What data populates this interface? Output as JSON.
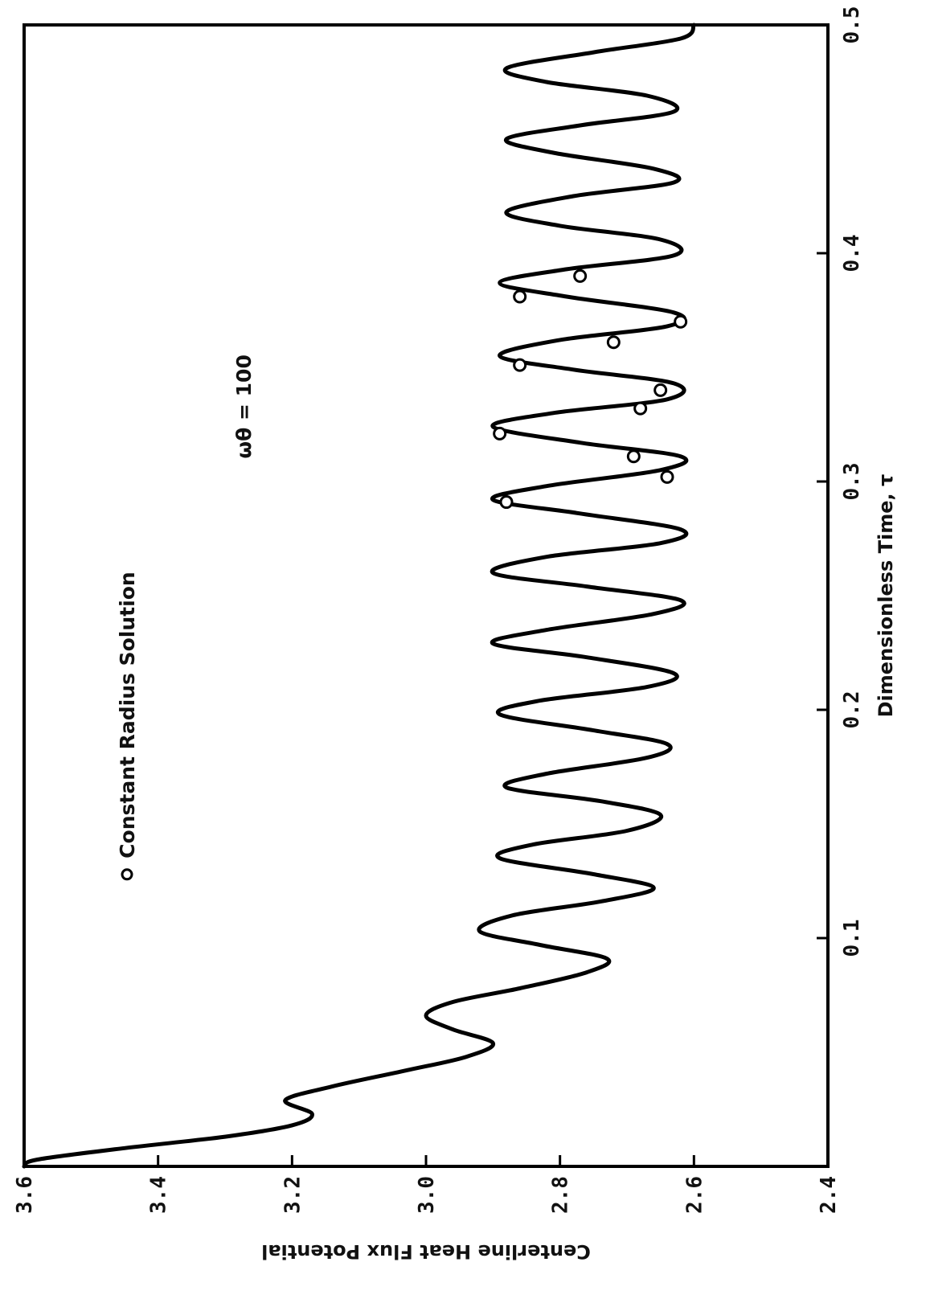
{
  "chart_data": {
    "type": "line",
    "xlabel": "Dimensionless Time, τ",
    "ylabel": "Centerline Heat Flux Potential",
    "annotation": "ωθ = 100",
    "xlim": [
      0,
      0.5
    ],
    "ylim": [
      2.4,
      3.6
    ],
    "x_ticks": [
      "0.1",
      "0.2",
      "0.3",
      "0.4",
      "0.5"
    ],
    "y_ticks": [
      "3.6",
      "3.4",
      "3.2",
      "3.0",
      "2.8",
      "2.6",
      "2.4"
    ],
    "series": [
      {
        "style": "line",
        "x": [
          0.0,
          0.003,
          0.008,
          0.013,
          0.018,
          0.023,
          0.029,
          0.035,
          0.042,
          0.048,
          0.054,
          0.06,
          0.066,
          0.072,
          0.078,
          0.085,
          0.091,
          0.097,
          0.103,
          0.11,
          0.116,
          0.122,
          0.128,
          0.135,
          0.141,
          0.147,
          0.154,
          0.16,
          0.166,
          0.172,
          0.179,
          0.185,
          0.191,
          0.198,
          0.204,
          0.21,
          0.216,
          0.223,
          0.229,
          0.235,
          0.242,
          0.248,
          0.254,
          0.26,
          0.267,
          0.273,
          0.279,
          0.286,
          0.292,
          0.298,
          0.305,
          0.311,
          0.317,
          0.324,
          0.33,
          0.336,
          0.343,
          0.349,
          0.355,
          0.362,
          0.368,
          0.374,
          0.381,
          0.387,
          0.393,
          0.399,
          0.406,
          0.412,
          0.418,
          0.425,
          0.431,
          0.437,
          0.444,
          0.45,
          0.456,
          0.462,
          0.469,
          0.475,
          0.481,
          0.488,
          0.494,
          0.5
        ],
        "y": [
          3.6,
          3.58,
          3.45,
          3.3,
          3.2,
          3.17,
          3.21,
          3.14,
          3.03,
          2.94,
          2.9,
          2.96,
          3.0,
          2.96,
          2.86,
          2.76,
          2.73,
          2.83,
          2.92,
          2.87,
          2.74,
          2.66,
          2.75,
          2.89,
          2.84,
          2.7,
          2.65,
          2.74,
          2.88,
          2.82,
          2.67,
          2.64,
          2.75,
          2.89,
          2.83,
          2.67,
          2.63,
          2.76,
          2.9,
          2.82,
          2.66,
          2.62,
          2.76,
          2.9,
          2.82,
          2.65,
          2.62,
          2.77,
          2.9,
          2.82,
          2.65,
          2.62,
          2.77,
          2.9,
          2.81,
          2.64,
          2.63,
          2.78,
          2.89,
          2.8,
          2.64,
          2.63,
          2.79,
          2.89,
          2.79,
          2.63,
          2.65,
          2.8,
          2.88,
          2.78,
          2.63,
          2.66,
          2.81,
          2.88,
          2.77,
          2.63,
          2.67,
          2.82,
          2.88,
          2.75,
          2.62,
          2.6
        ]
      },
      {
        "name": "Constant Radius Solution",
        "style": "markers",
        "x": [
          0.291,
          0.302,
          0.311,
          0.321,
          0.332,
          0.34,
          0.351,
          0.361,
          0.37,
          0.381,
          0.39
        ],
        "y": [
          2.88,
          2.64,
          2.69,
          2.89,
          2.68,
          2.65,
          2.86,
          2.72,
          2.62,
          2.86,
          2.77
        ]
      }
    ]
  }
}
